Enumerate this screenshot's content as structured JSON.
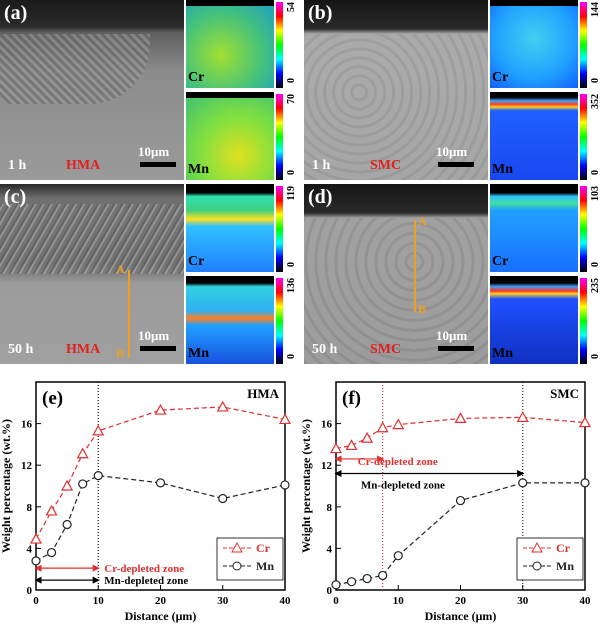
{
  "panels": [
    {
      "id": "a",
      "label": "(a)",
      "time": "1 h",
      "alloy": "HMA",
      "scale": "10μm",
      "maps": [
        {
          "element": "Cr",
          "max": "54",
          "min": "0"
        },
        {
          "element": "Mn",
          "max": "70",
          "min": "0"
        }
      ]
    },
    {
      "id": "b",
      "label": "(b)",
      "time": "1 h",
      "alloy": "SMC",
      "scale": "10μm",
      "maps": [
        {
          "element": "Cr",
          "max": "144",
          "min": "0"
        },
        {
          "element": "Mn",
          "max": "352",
          "min": "0"
        }
      ]
    },
    {
      "id": "c",
      "label": "(c)",
      "time": "50 h",
      "alloy": "HMA",
      "scale": "10μm",
      "line_a": "A",
      "line_b": "B",
      "maps": [
        {
          "element": "Cr",
          "max": "119",
          "min": "0"
        },
        {
          "element": "Mn",
          "max": "136",
          "min": "0"
        }
      ]
    },
    {
      "id": "d",
      "label": "(d)",
      "time": "50 h",
      "alloy": "SMC",
      "scale": "10μm",
      "line_a": "A",
      "line_b": "B",
      "maps": [
        {
          "element": "Cr",
          "max": "103",
          "min": "0"
        },
        {
          "element": "Mn",
          "max": "235",
          "min": "0"
        }
      ]
    }
  ],
  "colors": {
    "cr": "#e03030",
    "mn": "#222222",
    "line": "#f0a020",
    "zone_line": "#cc2222"
  },
  "chart_data": [
    {
      "type": "line",
      "panel": "(e)",
      "title": "HMA",
      "xlabel": "Distance (μm)",
      "ylabel": "Weight percentage (wt.%)",
      "xlim": [
        0,
        40
      ],
      "ylim": [
        0,
        20
      ],
      "xticks": [
        0,
        10,
        20,
        30,
        40
      ],
      "yticks": [
        0,
        4,
        8,
        12,
        16
      ],
      "series": [
        {
          "name": "Cr",
          "x": [
            0,
            2.5,
            5,
            7.5,
            10,
            20,
            30,
            40
          ],
          "y": [
            4.9,
            7.6,
            10.0,
            13.1,
            15.3,
            17.3,
            17.6,
            16.4
          ]
        },
        {
          "name": "Mn",
          "x": [
            0,
            2.5,
            5,
            7.5,
            10,
            20,
            30,
            40
          ],
          "y": [
            2.8,
            3.6,
            6.3,
            10.2,
            11.0,
            10.3,
            8.8,
            10.1
          ]
        }
      ],
      "annotations": {
        "cr_zone": "Cr-depleted zone",
        "mn_zone": "Mn-depleted zone",
        "cr_zone_end": 10,
        "mn_zone_end": 10
      }
    },
    {
      "type": "line",
      "panel": "(f)",
      "title": "SMC",
      "xlabel": "Distance (μm)",
      "ylabel": "Weight percentage (wt.%)",
      "xlim": [
        0,
        40
      ],
      "ylim": [
        0,
        20
      ],
      "xticks": [
        0,
        10,
        20,
        30,
        40
      ],
      "yticks": [
        0,
        4,
        8,
        12,
        16
      ],
      "series": [
        {
          "name": "Cr",
          "x": [
            0,
            2.5,
            5,
            7.5,
            10,
            20,
            30,
            40
          ],
          "y": [
            13.6,
            13.9,
            14.6,
            15.6,
            15.9,
            16.5,
            16.6,
            16.1
          ]
        },
        {
          "name": "Mn",
          "x": [
            0,
            2.5,
            5,
            7.5,
            10,
            20,
            30,
            40
          ],
          "y": [
            0.5,
            0.8,
            1.1,
            1.4,
            3.3,
            8.6,
            10.3,
            10.3
          ]
        }
      ],
      "annotations": {
        "cr_zone": "Cr-depleted zone",
        "mn_zone": "Mn-depleted zone",
        "cr_zone_end": 7.5,
        "mn_zone_end": 30
      }
    }
  ]
}
